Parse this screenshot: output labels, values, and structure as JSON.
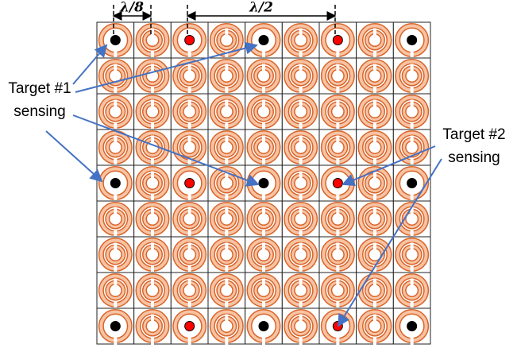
{
  "dimensions": {
    "small": "λ/8",
    "large": "λ/2"
  },
  "labels": {
    "target1": [
      "Target #1",
      "sensing"
    ],
    "target2": [
      "Target #2",
      "sensing"
    ]
  }
}
